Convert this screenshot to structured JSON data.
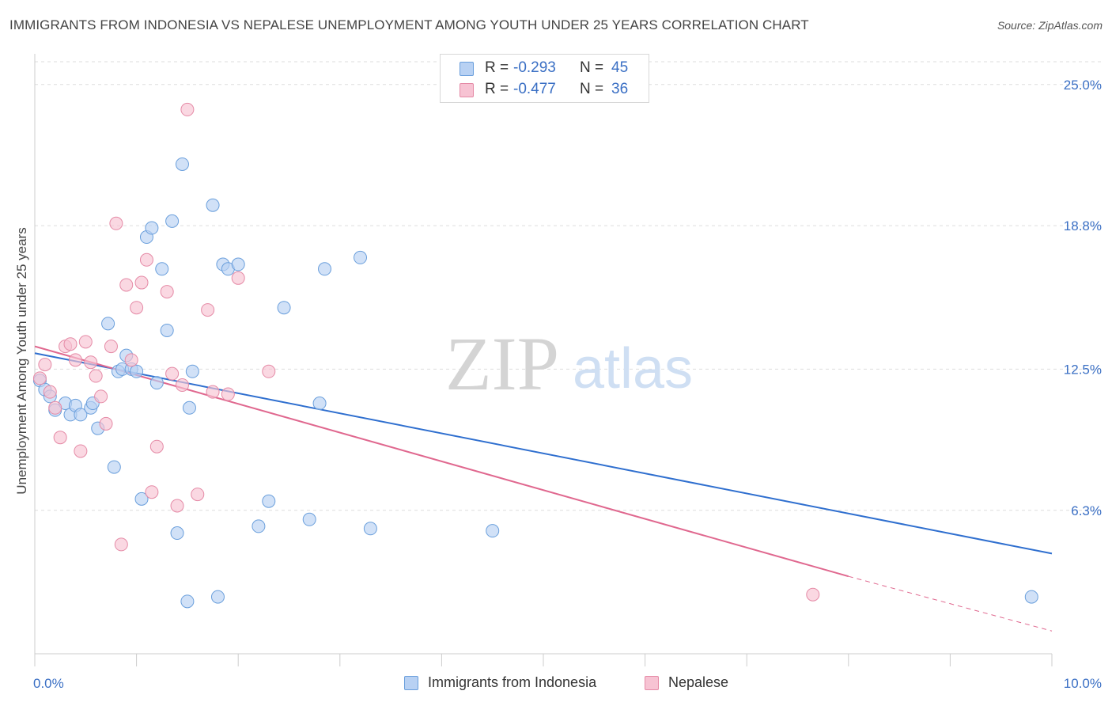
{
  "header": {
    "title": "IMMIGRANTS FROM INDONESIA VS NEPALESE UNEMPLOYMENT AMONG YOUTH UNDER 25 YEARS CORRELATION CHART",
    "source": "Source: ZipAtlas.com"
  },
  "watermark": {
    "zip": "ZIP",
    "atlas": "atlas"
  },
  "legend_top": {
    "rows": [
      {
        "r_label": "R =",
        "r_value": "-0.293",
        "n_label": "N =",
        "n_value": "45"
      },
      {
        "r_label": "R =",
        "r_value": "-0.477",
        "n_label": "N =",
        "n_value": "36"
      }
    ]
  },
  "legend_bottom": {
    "items": [
      {
        "label": "Immigrants from Indonesia"
      },
      {
        "label": "Nepalese"
      }
    ]
  },
  "colors": {
    "indonesia_fill": "#b8d1f3",
    "indonesia_stroke": "#6a9fdc",
    "indonesia_line": "#2f6fcf",
    "nepalese_fill": "#f7c3d3",
    "nepalese_stroke": "#e58aa6",
    "nepalese_line": "#e0688f",
    "tick_label": "#3a6fc4",
    "grid": "#dddddd"
  },
  "chart_data": {
    "type": "scatter",
    "title": "IMMIGRANTS FROM INDONESIA VS NEPALESE UNEMPLOYMENT AMONG YOUTH UNDER 25 YEARS CORRELATION CHART",
    "xlabel": "",
    "ylabel": "Unemployment Among Youth under 25 years",
    "xlim": [
      0,
      10
    ],
    "ylim": [
      0,
      26
    ],
    "x_tick_labels": [
      "0.0%",
      "10.0%"
    ],
    "y_ticks": [
      6.3,
      12.5,
      18.8,
      25.0
    ],
    "y_tick_labels": [
      "6.3%",
      "12.5%",
      "18.8%",
      "25.0%"
    ],
    "grid": "horizontal dashed",
    "legend_placement": "top-center and bottom",
    "series": [
      {
        "name": "Immigrants from Indonesia",
        "r": -0.293,
        "n": 45,
        "trend": {
          "x": [
            0,
            10
          ],
          "y": [
            13.2,
            4.4
          ]
        },
        "points": [
          [
            0.05,
            12.0
          ],
          [
            0.1,
            11.6
          ],
          [
            0.15,
            11.3
          ],
          [
            0.2,
            10.7
          ],
          [
            0.3,
            11.0
          ],
          [
            0.35,
            10.5
          ],
          [
            0.4,
            10.9
          ],
          [
            0.45,
            10.5
          ],
          [
            0.55,
            10.8
          ],
          [
            0.57,
            11.0
          ],
          [
            0.62,
            9.9
          ],
          [
            0.72,
            14.5
          ],
          [
            0.78,
            8.2
          ],
          [
            0.82,
            12.4
          ],
          [
            0.86,
            12.5
          ],
          [
            0.9,
            13.1
          ],
          [
            0.95,
            12.5
          ],
          [
            1.0,
            12.4
          ],
          [
            1.05,
            6.8
          ],
          [
            1.1,
            18.3
          ],
          [
            1.15,
            18.7
          ],
          [
            1.2,
            11.9
          ],
          [
            1.25,
            16.9
          ],
          [
            1.3,
            14.2
          ],
          [
            1.35,
            19.0
          ],
          [
            1.4,
            5.3
          ],
          [
            1.45,
            21.5
          ],
          [
            1.5,
            2.3
          ],
          [
            1.52,
            10.8
          ],
          [
            1.55,
            12.4
          ],
          [
            1.75,
            19.7
          ],
          [
            1.8,
            2.5
          ],
          [
            1.85,
            17.1
          ],
          [
            1.9,
            16.9
          ],
          [
            2.0,
            17.1
          ],
          [
            2.2,
            5.6
          ],
          [
            2.3,
            6.7
          ],
          [
            2.45,
            15.2
          ],
          [
            2.7,
            5.9
          ],
          [
            2.8,
            11.0
          ],
          [
            2.85,
            16.9
          ],
          [
            3.2,
            17.4
          ],
          [
            3.3,
            5.5
          ],
          [
            4.5,
            5.4
          ],
          [
            9.8,
            2.5
          ]
        ]
      },
      {
        "name": "Nepalese",
        "r": -0.477,
        "n": 36,
        "trend": {
          "x": [
            0,
            8.0
          ],
          "y": [
            13.5,
            3.4
          ],
          "dashed_to": {
            "x": 10,
            "y": 1.0
          }
        },
        "points": [
          [
            0.05,
            12.1
          ],
          [
            0.1,
            12.7
          ],
          [
            0.15,
            11.5
          ],
          [
            0.2,
            10.8
          ],
          [
            0.25,
            9.5
          ],
          [
            0.3,
            13.5
          ],
          [
            0.35,
            13.6
          ],
          [
            0.4,
            12.9
          ],
          [
            0.45,
            8.9
          ],
          [
            0.5,
            13.7
          ],
          [
            0.55,
            12.8
          ],
          [
            0.6,
            12.2
          ],
          [
            0.65,
            11.3
          ],
          [
            0.7,
            10.1
          ],
          [
            0.75,
            13.5
          ],
          [
            0.8,
            18.9
          ],
          [
            0.85,
            4.8
          ],
          [
            0.9,
            16.2
          ],
          [
            0.95,
            12.9
          ],
          [
            1.0,
            15.2
          ],
          [
            1.05,
            16.3
          ],
          [
            1.1,
            17.3
          ],
          [
            1.15,
            7.1
          ],
          [
            1.2,
            9.1
          ],
          [
            1.3,
            15.9
          ],
          [
            1.35,
            12.3
          ],
          [
            1.4,
            6.5
          ],
          [
            1.45,
            11.8
          ],
          [
            1.5,
            23.9
          ],
          [
            1.6,
            7.0
          ],
          [
            1.7,
            15.1
          ],
          [
            1.75,
            11.5
          ],
          [
            1.9,
            11.4
          ],
          [
            2.0,
            16.5
          ],
          [
            2.3,
            12.4
          ],
          [
            7.65,
            2.6
          ]
        ]
      }
    ]
  }
}
